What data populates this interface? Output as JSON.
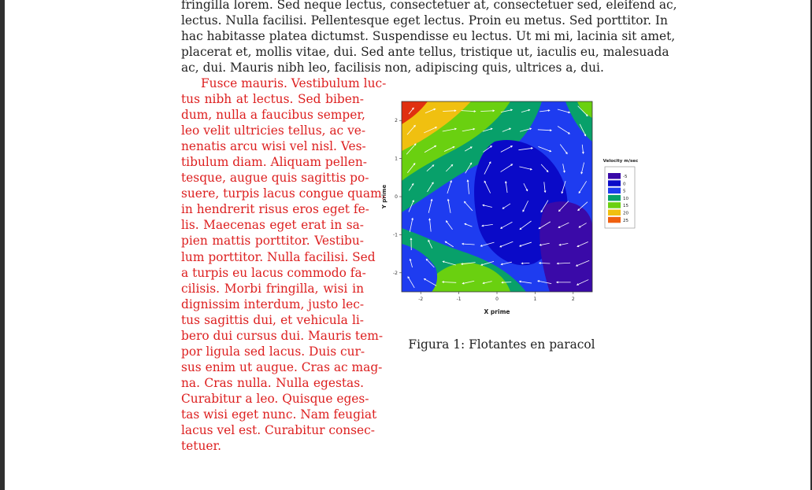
{
  "top_paragraph": [
    "fringilla lorem. Sed neque lectus, consectetuer at, consectetuer sed, eleifend ac,",
    "lectus. Nulla facilisi. Pellentesque eget lectus. Proin eu metus. Sed porttitor. In",
    "hac habitasse platea dictumst. Suspendisse eu lectus. Ut mi mi, lacinia sit amet,",
    "placerat et, mollis vitae, dui. Sed ante tellus, tristique ut, iaculis eu, malesuada",
    "ac, dui. Mauris nibh leo, facilisis non, adipiscing quis, ultrices a, dui."
  ],
  "red_paragraph": [
    "Fusce mauris. Vestibulum luc-",
    "tus nibh at lectus. Sed biben-",
    "dum, nulla a faucibus semper,",
    "leo velit ultricies tellus, ac ve-",
    "nenatis arcu wisi vel nisl. Ves-",
    "tibulum diam. Aliquam pellen-",
    "tesque, augue quis sagittis po-",
    "suere, turpis lacus congue quam,",
    "in hendrerit risus eros eget fe-",
    "lis. Maecenas eget erat in sa-",
    "pien mattis porttitor. Vestibu-",
    "lum porttitor. Nulla facilisi. Sed",
    "a turpis eu lacus commodo fa-",
    "cilisis. Morbi fringilla, wisi in",
    "dignissim interdum, justo lec-",
    "tus sagittis dui, et vehicula li-",
    "bero dui cursus dui. Mauris tem-",
    "por ligula sed lacus. Duis cur-",
    "sus enim ut augue. Cras ac mag-",
    "na. Cras nulla. Nulla egestas.",
    "Curabitur a leo. Quisque eges-",
    "tas wisi eget nunc. Nam feugiat",
    "lacus vel est. Curabitur consec-",
    "tetuer."
  ],
  "caption": "Figura 1: Flotantes en paracol",
  "colors": {
    "text": "#222222",
    "red_text": "#dd2020",
    "frame": "#2f2f2f"
  },
  "chart_data": {
    "type": "heatmap",
    "title": "",
    "xlabel": "X prime",
    "ylabel": "Y prime",
    "xlim": [
      -2.5,
      2.5
    ],
    "ylim": [
      -2.5,
      2.5
    ],
    "xticks": [
      "-2",
      "-1",
      "0",
      "1",
      "2"
    ],
    "yticks": [
      "2",
      "1",
      "0",
      "-1",
      "-2"
    ],
    "legend": {
      "title": "Velocity m/sec",
      "placement": "right",
      "entries": [
        {
          "label": "-5",
          "color": "#3a0aa8"
        },
        {
          "label": "0",
          "color": "#0a0ac8"
        },
        {
          "label": "5",
          "color": "#1e3cf0"
        },
        {
          "label": "10",
          "color": "#08a06a"
        },
        {
          "label": "15",
          "color": "#6ad010"
        },
        {
          "label": "20",
          "color": "#f0c010"
        },
        {
          "label": "25",
          "color": "#f06010"
        }
      ]
    }
  }
}
